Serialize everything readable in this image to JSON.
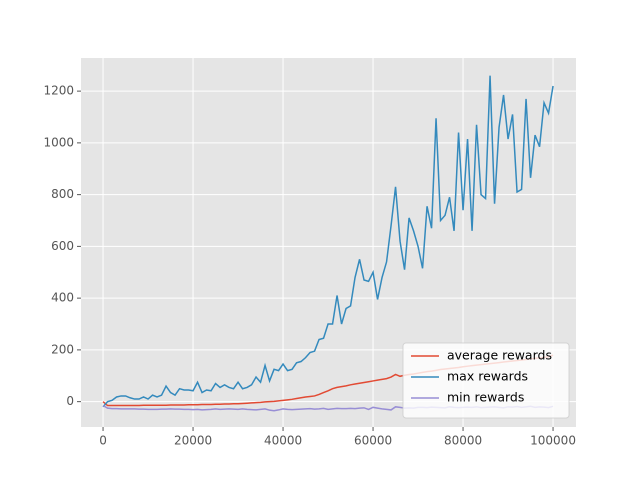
{
  "chart_data": {
    "type": "line",
    "x": [
      0,
      1000,
      2000,
      3000,
      4000,
      5000,
      6000,
      7000,
      8000,
      9000,
      10000,
      11000,
      12000,
      13000,
      14000,
      15000,
      16000,
      17000,
      18000,
      19000,
      20000,
      21000,
      22000,
      23000,
      24000,
      25000,
      26000,
      27000,
      28000,
      29000,
      30000,
      31000,
      32000,
      33000,
      34000,
      35000,
      36000,
      37000,
      38000,
      39000,
      40000,
      41000,
      42000,
      43000,
      44000,
      45000,
      46000,
      47000,
      48000,
      49000,
      50000,
      51000,
      52000,
      53000,
      54000,
      55000,
      56000,
      57000,
      58000,
      59000,
      60000,
      61000,
      62000,
      63000,
      64000,
      65000,
      66000,
      67000,
      68000,
      69000,
      70000,
      71000,
      72000,
      73000,
      74000,
      75000,
      76000,
      77000,
      78000,
      79000,
      80000,
      81000,
      82000,
      83000,
      84000,
      85000,
      86000,
      87000,
      88000,
      89000,
      90000,
      91000,
      92000,
      93000,
      94000,
      95000,
      96000,
      97000,
      98000,
      99000,
      100000
    ],
    "series": [
      {
        "name": "average rewards",
        "color": "#E24A33",
        "values": [
          0,
          -15,
          -15,
          -15,
          -15,
          -15,
          -15,
          -15,
          -15,
          -14,
          -14,
          -14,
          -14,
          -14,
          -14,
          -13,
          -13,
          -13,
          -13,
          -12,
          -12,
          -12,
          -11,
          -11,
          -11,
          -10,
          -10,
          -9,
          -9,
          -8,
          -8,
          -7,
          -6,
          -5,
          -4,
          -3,
          -1,
          0,
          1,
          3,
          5,
          7,
          9,
          12,
          15,
          18,
          20,
          22,
          28,
          35,
          42,
          50,
          55,
          58,
          61,
          65,
          68,
          71,
          74,
          77,
          80,
          83,
          86,
          89,
          95,
          105,
          98,
          102,
          105,
          107,
          110,
          113,
          116,
          118,
          121,
          124,
          126,
          128,
          130,
          132,
          135,
          137,
          139,
          141,
          143,
          145,
          147,
          149,
          151,
          153,
          155,
          157,
          159,
          161,
          163,
          165,
          167,
          169,
          171,
          173,
          180
        ]
      },
      {
        "name": "max rewards",
        "color": "#348ABD",
        "values": [
          -20,
          0,
          5,
          18,
          22,
          22,
          15,
          10,
          10,
          18,
          10,
          25,
          18,
          25,
          60,
          35,
          25,
          50,
          45,
          45,
          42,
          75,
          35,
          45,
          42,
          70,
          55,
          65,
          55,
          50,
          75,
          50,
          55,
          65,
          95,
          75,
          140,
          80,
          125,
          120,
          145,
          120,
          125,
          150,
          155,
          170,
          190,
          195,
          240,
          245,
          300,
          300,
          410,
          300,
          360,
          370,
          480,
          550,
          470,
          465,
          500,
          395,
          480,
          540,
          680,
          830,
          620,
          510,
          710,
          660,
          600,
          515,
          755,
          670,
          1095,
          700,
          720,
          790,
          660,
          1040,
          740,
          1015,
          660,
          1070,
          800,
          785,
          1260,
          765,
          1060,
          1185,
          1015,
          1110,
          810,
          820,
          1170,
          865,
          1030,
          985,
          1155,
          1115,
          1220
        ]
      },
      {
        "name": "min rewards",
        "color": "#988ED5",
        "values": [
          -15,
          -25,
          -27,
          -27,
          -28,
          -28,
          -28,
          -28,
          -29,
          -29,
          -30,
          -30,
          -30,
          -29,
          -29,
          -28,
          -29,
          -29,
          -30,
          -30,
          -31,
          -30,
          -32,
          -31,
          -30,
          -28,
          -30,
          -29,
          -28,
          -29,
          -30,
          -28,
          -30,
          -31,
          -32,
          -30,
          -28,
          -33,
          -35,
          -32,
          -28,
          -30,
          -31,
          -30,
          -29,
          -28,
          -27,
          -29,
          -28,
          -26,
          -30,
          -28,
          -26,
          -27,
          -27,
          -26,
          -27,
          -25,
          -24,
          -30,
          -22,
          -25,
          -28,
          -30,
          -32,
          -20,
          -22,
          -25,
          -24,
          -25,
          -22,
          -22,
          -23,
          -21,
          -22,
          -23,
          -24,
          -20,
          -22,
          -23,
          -22,
          -21,
          -22,
          -20,
          -23,
          -22,
          -21,
          -20,
          -22,
          -24,
          -20,
          -21,
          -19,
          -22,
          -20,
          -18,
          -22,
          -20,
          -21,
          -23,
          -18
        ]
      }
    ],
    "xlim": [
      -4900,
      105100
    ],
    "ylim": [
      -98,
      1328
    ],
    "xticks": [
      0,
      20000,
      40000,
      60000,
      80000,
      100000
    ],
    "yticks": [
      0,
      200,
      400,
      600,
      800,
      1000,
      1200
    ],
    "grid": true,
    "legend": "lower right"
  }
}
